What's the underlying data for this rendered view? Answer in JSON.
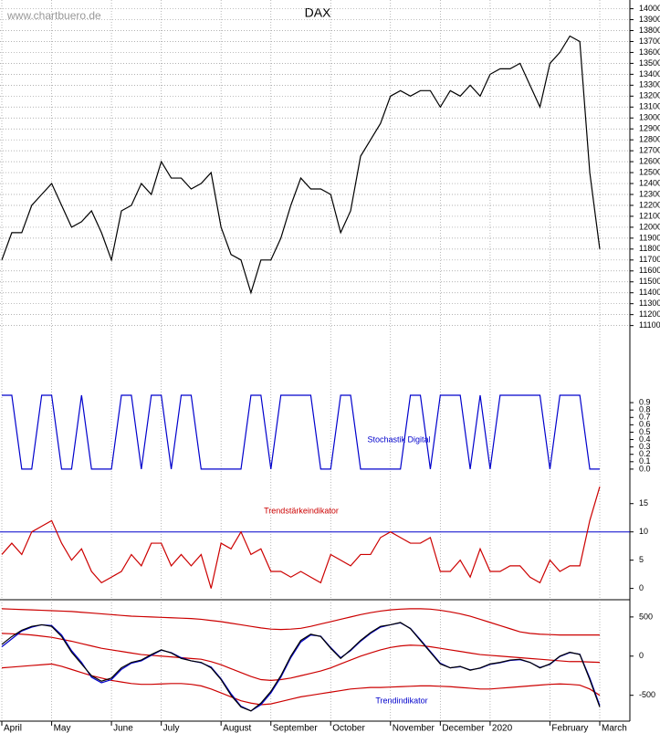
{
  "header": {
    "site": "www.chartbuero.de"
  },
  "chart_data": [
    {
      "type": "line",
      "title": "DAX",
      "categories": [
        "April",
        null,
        null,
        null,
        null,
        "May",
        null,
        null,
        null,
        null,
        null,
        "June",
        null,
        null,
        null,
        null,
        "July",
        null,
        null,
        null,
        null,
        null,
        "August",
        null,
        null,
        null,
        null,
        "September",
        null,
        null,
        null,
        null,
        null,
        "October",
        null,
        null,
        null,
        null,
        null,
        "November",
        null,
        null,
        null,
        null,
        "December",
        null,
        null,
        null,
        null,
        "2020",
        null,
        null,
        null,
        null,
        null,
        "February",
        null,
        null,
        null,
        null,
        "March"
      ],
      "series": [
        {
          "color": "#000000",
          "values": [
            11700,
            11950,
            11950,
            12200,
            12300,
            12400,
            12200,
            12000,
            12050,
            12150,
            11950,
            11700,
            12150,
            12200,
            12400,
            12300,
            12600,
            12450,
            12450,
            12350,
            12400,
            12500,
            12000,
            11750,
            11700,
            11400,
            11700,
            11700,
            11900,
            12200,
            12450,
            12350,
            12350,
            12300,
            11950,
            12150,
            12650,
            12800,
            12950,
            13200,
            13250,
            13200,
            13250,
            13250,
            13100,
            13250,
            13200,
            13300,
            13200,
            13400,
            13450,
            13450,
            13500,
            13300,
            13100,
            13500,
            13600,
            13750,
            13700,
            12500,
            11800
          ]
        }
      ],
      "ylim": [
        11030,
        14080
      ],
      "yticks": [
        11100,
        11200,
        11300,
        11400,
        11500,
        11600,
        11700,
        11800,
        11900,
        12000,
        12100,
        12200,
        12300,
        12400,
        12500,
        12600,
        12700,
        12800,
        12900,
        13000,
        13100,
        13200,
        13300,
        13400,
        13500,
        13600,
        13700,
        13800,
        13900,
        14000
      ],
      "grid": true
    },
    {
      "type": "line",
      "annotation": "Stochastik Digital",
      "series": [
        {
          "color": "#0000cc",
          "values": [
            1,
            1,
            0,
            0,
            1,
            1,
            0,
            0,
            1,
            0,
            0,
            0,
            1,
            1,
            0,
            1,
            1,
            0,
            1,
            1,
            0,
            0,
            0,
            0,
            0,
            1,
            1,
            0,
            1,
            1,
            1,
            1,
            0,
            0,
            1,
            1,
            0,
            0,
            0,
            0,
            0,
            1,
            1,
            0,
            1,
            1,
            1,
            0,
            1,
            0,
            1,
            1,
            1,
            1,
            1,
            0,
            1,
            1,
            1,
            0,
            0
          ]
        }
      ],
      "ylim": [
        -0.1,
        1.84
      ],
      "yticks": [
        {
          "value": 0,
          "label": "0.0"
        },
        0.1,
        0.2,
        0.3,
        0.4,
        0.5,
        0.6,
        0.7,
        0.8,
        0.9
      ],
      "annotation_color": "#0000cc"
    },
    {
      "type": "line",
      "annotation": "Trendstärkeindikator",
      "series": [
        {
          "color": "#cc0000",
          "values": [
            6,
            8,
            6,
            10,
            11,
            12,
            8,
            5,
            7,
            3,
            1,
            2,
            3,
            6,
            4,
            8,
            8,
            4,
            6,
            4,
            6,
            0,
            8,
            7,
            10,
            6,
            7,
            3,
            3,
            2,
            3,
            2,
            1,
            6,
            5,
            4,
            6,
            6,
            9,
            10,
            9,
            8,
            8,
            9,
            3,
            3,
            5,
            2,
            7,
            3,
            3,
            4,
            4,
            2,
            1,
            5,
            3,
            4,
            4,
            12,
            18
          ]
        }
      ],
      "hline": 10,
      "hline_color": "#0000cc",
      "ylim": [
        -2,
        19.8
      ],
      "yticks": [
        0,
        5,
        10,
        15
      ],
      "annotation_color": "#cc0000"
    },
    {
      "type": "line",
      "annotation": "Trendindikator",
      "series": [
        {
          "color": "#cc0000",
          "values": [
            605,
            600,
            595,
            590,
            585,
            580,
            575,
            570,
            560,
            550,
            540,
            530,
            520,
            510,
            505,
            500,
            495,
            490,
            485,
            480,
            470,
            455,
            440,
            420,
            400,
            380,
            360,
            345,
            340,
            345,
            355,
            380,
            410,
            440,
            470,
            500,
            530,
            555,
            575,
            590,
            600,
            605,
            605,
            600,
            585,
            565,
            540,
            510,
            470,
            430,
            390,
            350,
            310,
            290,
            280,
            275,
            270,
            270,
            270,
            270,
            270
          ]
        },
        {
          "color": "#cc0000",
          "values": [
            290,
            285,
            280,
            270,
            255,
            240,
            215,
            190,
            160,
            130,
            100,
            80,
            60,
            40,
            20,
            10,
            0,
            -10,
            -20,
            -30,
            -40,
            -70,
            -110,
            -160,
            -210,
            -260,
            -300,
            -310,
            -300,
            -280,
            -250,
            -220,
            -190,
            -150,
            -100,
            -50,
            0,
            40,
            80,
            110,
            130,
            140,
            135,
            120,
            100,
            80,
            60,
            40,
            20,
            10,
            0,
            -10,
            -20,
            -30,
            -40,
            -50,
            -60,
            -70,
            -70,
            -75,
            -80
          ]
        },
        {
          "color": "#cc0000",
          "values": [
            -150,
            -140,
            -130,
            -120,
            -110,
            -100,
            -130,
            -170,
            -210,
            -250,
            -280,
            -310,
            -330,
            -350,
            -360,
            -360,
            -355,
            -350,
            -350,
            -360,
            -380,
            -420,
            -470,
            -520,
            -570,
            -600,
            -620,
            -610,
            -580,
            -550,
            -520,
            -500,
            -480,
            -460,
            -440,
            -420,
            -410,
            -400,
            -400,
            -395,
            -390,
            -385,
            -380,
            -380,
            -385,
            -390,
            -400,
            -410,
            -420,
            -420,
            -410,
            -400,
            -390,
            -380,
            -370,
            -360,
            -355,
            -360,
            -370,
            -420,
            -500
          ]
        },
        {
          "color": "#0000cc",
          "values": [
            120,
            220,
            320,
            370,
            400,
            390,
            270,
            70,
            -80,
            -270,
            -340,
            -300,
            -170,
            -90,
            -60,
            10,
            75,
            45,
            -20,
            -60,
            -85,
            -140,
            -290,
            -480,
            -640,
            -700,
            -620,
            -470,
            -270,
            -20,
            180,
            270,
            255,
            110,
            -20,
            70,
            190,
            290,
            370,
            400,
            425,
            355,
            210,
            60,
            -90,
            -150,
            -135,
            -175,
            -155,
            -105,
            -85,
            -55,
            -45,
            -80,
            -145,
            -105,
            -5,
            45,
            25,
            -280,
            -630
          ]
        },
        {
          "color": "#000000",
          "values": [
            150,
            250,
            330,
            380,
            400,
            380,
            250,
            50,
            -100,
            -250,
            -320,
            -280,
            -150,
            -80,
            -50,
            20,
            80,
            40,
            -30,
            -60,
            -80,
            -150,
            -300,
            -500,
            -650,
            -700,
            -600,
            -450,
            -250,
            0,
            200,
            280,
            250,
            100,
            -30,
            80,
            200,
            300,
            380,
            400,
            430,
            350,
            200,
            50,
            -100,
            -150,
            -130,
            -180,
            -150,
            -100,
            -80,
            -50,
            -40,
            -80,
            -150,
            -100,
            0,
            50,
            20,
            -300,
            -650
          ]
        }
      ],
      "ylim": [
        -830,
        720
      ],
      "yticks": [
        -500,
        0,
        500
      ],
      "annotation_color": "#0000cc"
    }
  ]
}
